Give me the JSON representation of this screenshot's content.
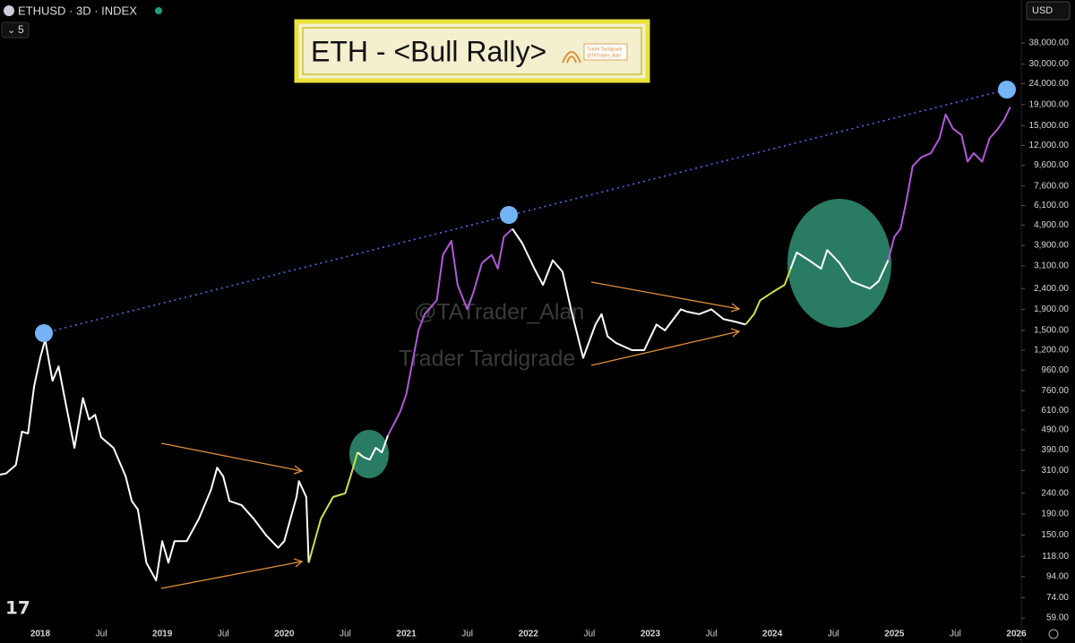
{
  "header": {
    "symbol": "ETHUSD · 3D · INDEX",
    "interval": "5",
    "currency": "USD"
  },
  "watermark": [
    "@TATrader_Alan",
    "Trader Tardigrade"
  ],
  "logo_text": [
    "Trader Tardigrade",
    "@TATrader_Alan"
  ],
  "chart_data": {
    "type": "line",
    "title": "ETH - <Bull Rally>",
    "log_scale": true,
    "xlim": [
      2017.67,
      2026.04
    ],
    "ylim": [
      53.4,
      61600
    ],
    "xticks": [
      2018,
      {
        "value": 2018.5,
        "label": "Jul"
      },
      2019,
      {
        "value": 2019.5,
        "label": "Jul"
      },
      2020,
      {
        "value": 2020.5,
        "label": "Jul"
      },
      2021,
      {
        "value": 2021.5,
        "label": "Jul"
      },
      2022,
      {
        "value": 2022.5,
        "label": "Jul"
      },
      2023,
      {
        "value": 2023.5,
        "label": "Jul"
      },
      2024,
      {
        "value": 2024.5,
        "label": "Jul"
      },
      2025,
      {
        "value": 2025.5,
        "label": "Jul"
      },
      2026
    ],
    "yticks": [
      {
        "value": 38000,
        "label": "38,000.00"
      },
      {
        "value": 30000,
        "label": "30,000.00"
      },
      {
        "value": 24000,
        "label": "24,000.00"
      },
      {
        "value": 19000,
        "label": "19,000.00"
      },
      {
        "value": 15000,
        "label": "15,000.00"
      },
      {
        "value": 12000,
        "label": "12,000.00"
      },
      {
        "value": 9600,
        "label": "9,600.00"
      },
      {
        "value": 7600,
        "label": "7,600.00"
      },
      {
        "value": 6100,
        "label": "6,100.00"
      },
      {
        "value": 4900,
        "label": "4,900.00"
      },
      {
        "value": 3900,
        "label": "3,900.00"
      },
      {
        "value": 3100,
        "label": "3,100.00"
      },
      {
        "value": 2400,
        "label": "2,400.00"
      },
      {
        "value": 1900,
        "label": "1,900.00"
      },
      {
        "value": 1500,
        "label": "1,500.00"
      },
      {
        "value": 1200,
        "label": "1,200.00"
      },
      {
        "value": 960,
        "label": "960.00"
      },
      {
        "value": 760,
        "label": "760.00"
      },
      {
        "value": 610,
        "label": "610.00"
      },
      {
        "value": 490,
        "label": "490.00"
      },
      {
        "value": 390,
        "label": "390.00"
      },
      {
        "value": 310,
        "label": "310.00"
      },
      {
        "value": 240,
        "label": "240.00"
      },
      {
        "value": 190,
        "label": "190.00"
      },
      {
        "value": 150,
        "label": "150.00"
      },
      {
        "value": 118,
        "label": "118.00"
      },
      {
        "value": 94,
        "label": "94.00"
      },
      {
        "value": 74,
        "label": "74.00"
      },
      {
        "value": 59,
        "label": "59.00"
      }
    ],
    "series": [
      {
        "color": "#ffffff",
        "x": [
          2017.67,
          2017.72,
          2017.8,
          2017.85,
          2017.9,
          2017.95,
          2018.0,
          2018.04,
          2018.1,
          2018.15,
          2018.2,
          2018.28,
          2018.35,
          2018.4,
          2018.45,
          2018.5,
          2018.6,
          2018.7,
          2018.75,
          2018.8,
          2018.87,
          2018.95,
          2019.0,
          2019.05,
          2019.1,
          2019.2,
          2019.3,
          2019.4,
          2019.45,
          2019.5,
          2019.55,
          2019.65,
          2019.75,
          2019.85,
          2019.95,
          2020.0,
          2020.1,
          2020.12,
          2020.18,
          2020.2
        ],
        "values": [
          296,
          300,
          330,
          480,
          470,
          800,
          1100,
          1350,
          850,
          1000,
          700,
          400,
          700,
          550,
          580,
          450,
          400,
          290,
          220,
          200,
          110,
          90,
          140,
          110,
          140,
          140,
          180,
          250,
          320,
          290,
          220,
          210,
          180,
          150,
          130,
          140,
          230,
          275,
          230,
          110
        ]
      },
      {
        "color": "#d4dc4a",
        "x": [
          2020.2,
          2020.3,
          2020.4,
          2020.5,
          2020.55,
          2020.6
        ],
        "values": [
          110,
          180,
          230,
          240,
          300,
          380
        ]
      },
      {
        "color": "#ffffff",
        "x": [
          2020.6,
          2020.65,
          2020.7,
          2020.75,
          2020.8,
          2020.85
        ],
        "values": [
          380,
          360,
          350,
          400,
          380,
          460
        ]
      },
      {
        "color": "#b05ad8",
        "x": [
          2020.85,
          2020.95,
          2021.0,
          2021.1,
          2021.15,
          2021.25,
          2021.3,
          2021.37,
          2021.42,
          2021.5,
          2021.55,
          2021.62,
          2021.7,
          2021.75,
          2021.8,
          2021.87
        ],
        "values": [
          460,
          600,
          730,
          1500,
          1800,
          2100,
          3500,
          4100,
          2500,
          1900,
          2300,
          3200,
          3500,
          3000,
          4300,
          4700
        ]
      },
      {
        "color": "#ffffff",
        "x": [
          2021.87,
          2021.95,
          2022.05,
          2022.12,
          2022.2,
          2022.28,
          2022.35,
          2022.45,
          2022.55,
          2022.6,
          2022.65,
          2022.72,
          2022.85,
          2022.95,
          2023.05,
          2023.12,
          2023.25,
          2023.3,
          2023.4,
          2023.5,
          2023.6,
          2023.7,
          2023.78
        ],
        "values": [
          4700,
          4000,
          3000,
          2500,
          3300,
          2900,
          1900,
          1100,
          1600,
          1800,
          1400,
          1300,
          1200,
          1200,
          1600,
          1500,
          1900,
          1850,
          1800,
          1900,
          1700,
          1650,
          1600
        ]
      },
      {
        "color": "#d4dc4a",
        "x": [
          2023.78,
          2023.85,
          2023.9,
          2024.0,
          2024.1,
          2024.15
        ],
        "values": [
          1600,
          1800,
          2100,
          2300,
          2500,
          3000
        ]
      },
      {
        "color": "#ffffff",
        "x": [
          2024.15,
          2024.2,
          2024.3,
          2024.4,
          2024.45,
          2024.55,
          2024.65,
          2024.72,
          2024.8,
          2024.87,
          2024.95
        ],
        "values": [
          3000,
          3600,
          3300,
          3000,
          3700,
          3200,
          2600,
          2500,
          2400,
          2600,
          3300
        ]
      },
      {
        "color": "#b05ad8",
        "x": [
          2024.95,
          2025.0,
          2025.05,
          2025.1,
          2025.15,
          2025.22,
          2025.3,
          2025.37,
          2025.42,
          2025.48,
          2025.55,
          2025.6,
          2025.65,
          2025.72,
          2025.78,
          2025.85,
          2025.9,
          2025.95
        ],
        "values": [
          3300,
          4300,
          4700,
          6500,
          9500,
          10500,
          11000,
          13000,
          17000,
          14500,
          13500,
          10000,
          11000,
          10000,
          13000,
          14500,
          16000,
          18500
        ]
      }
    ]
  }
}
